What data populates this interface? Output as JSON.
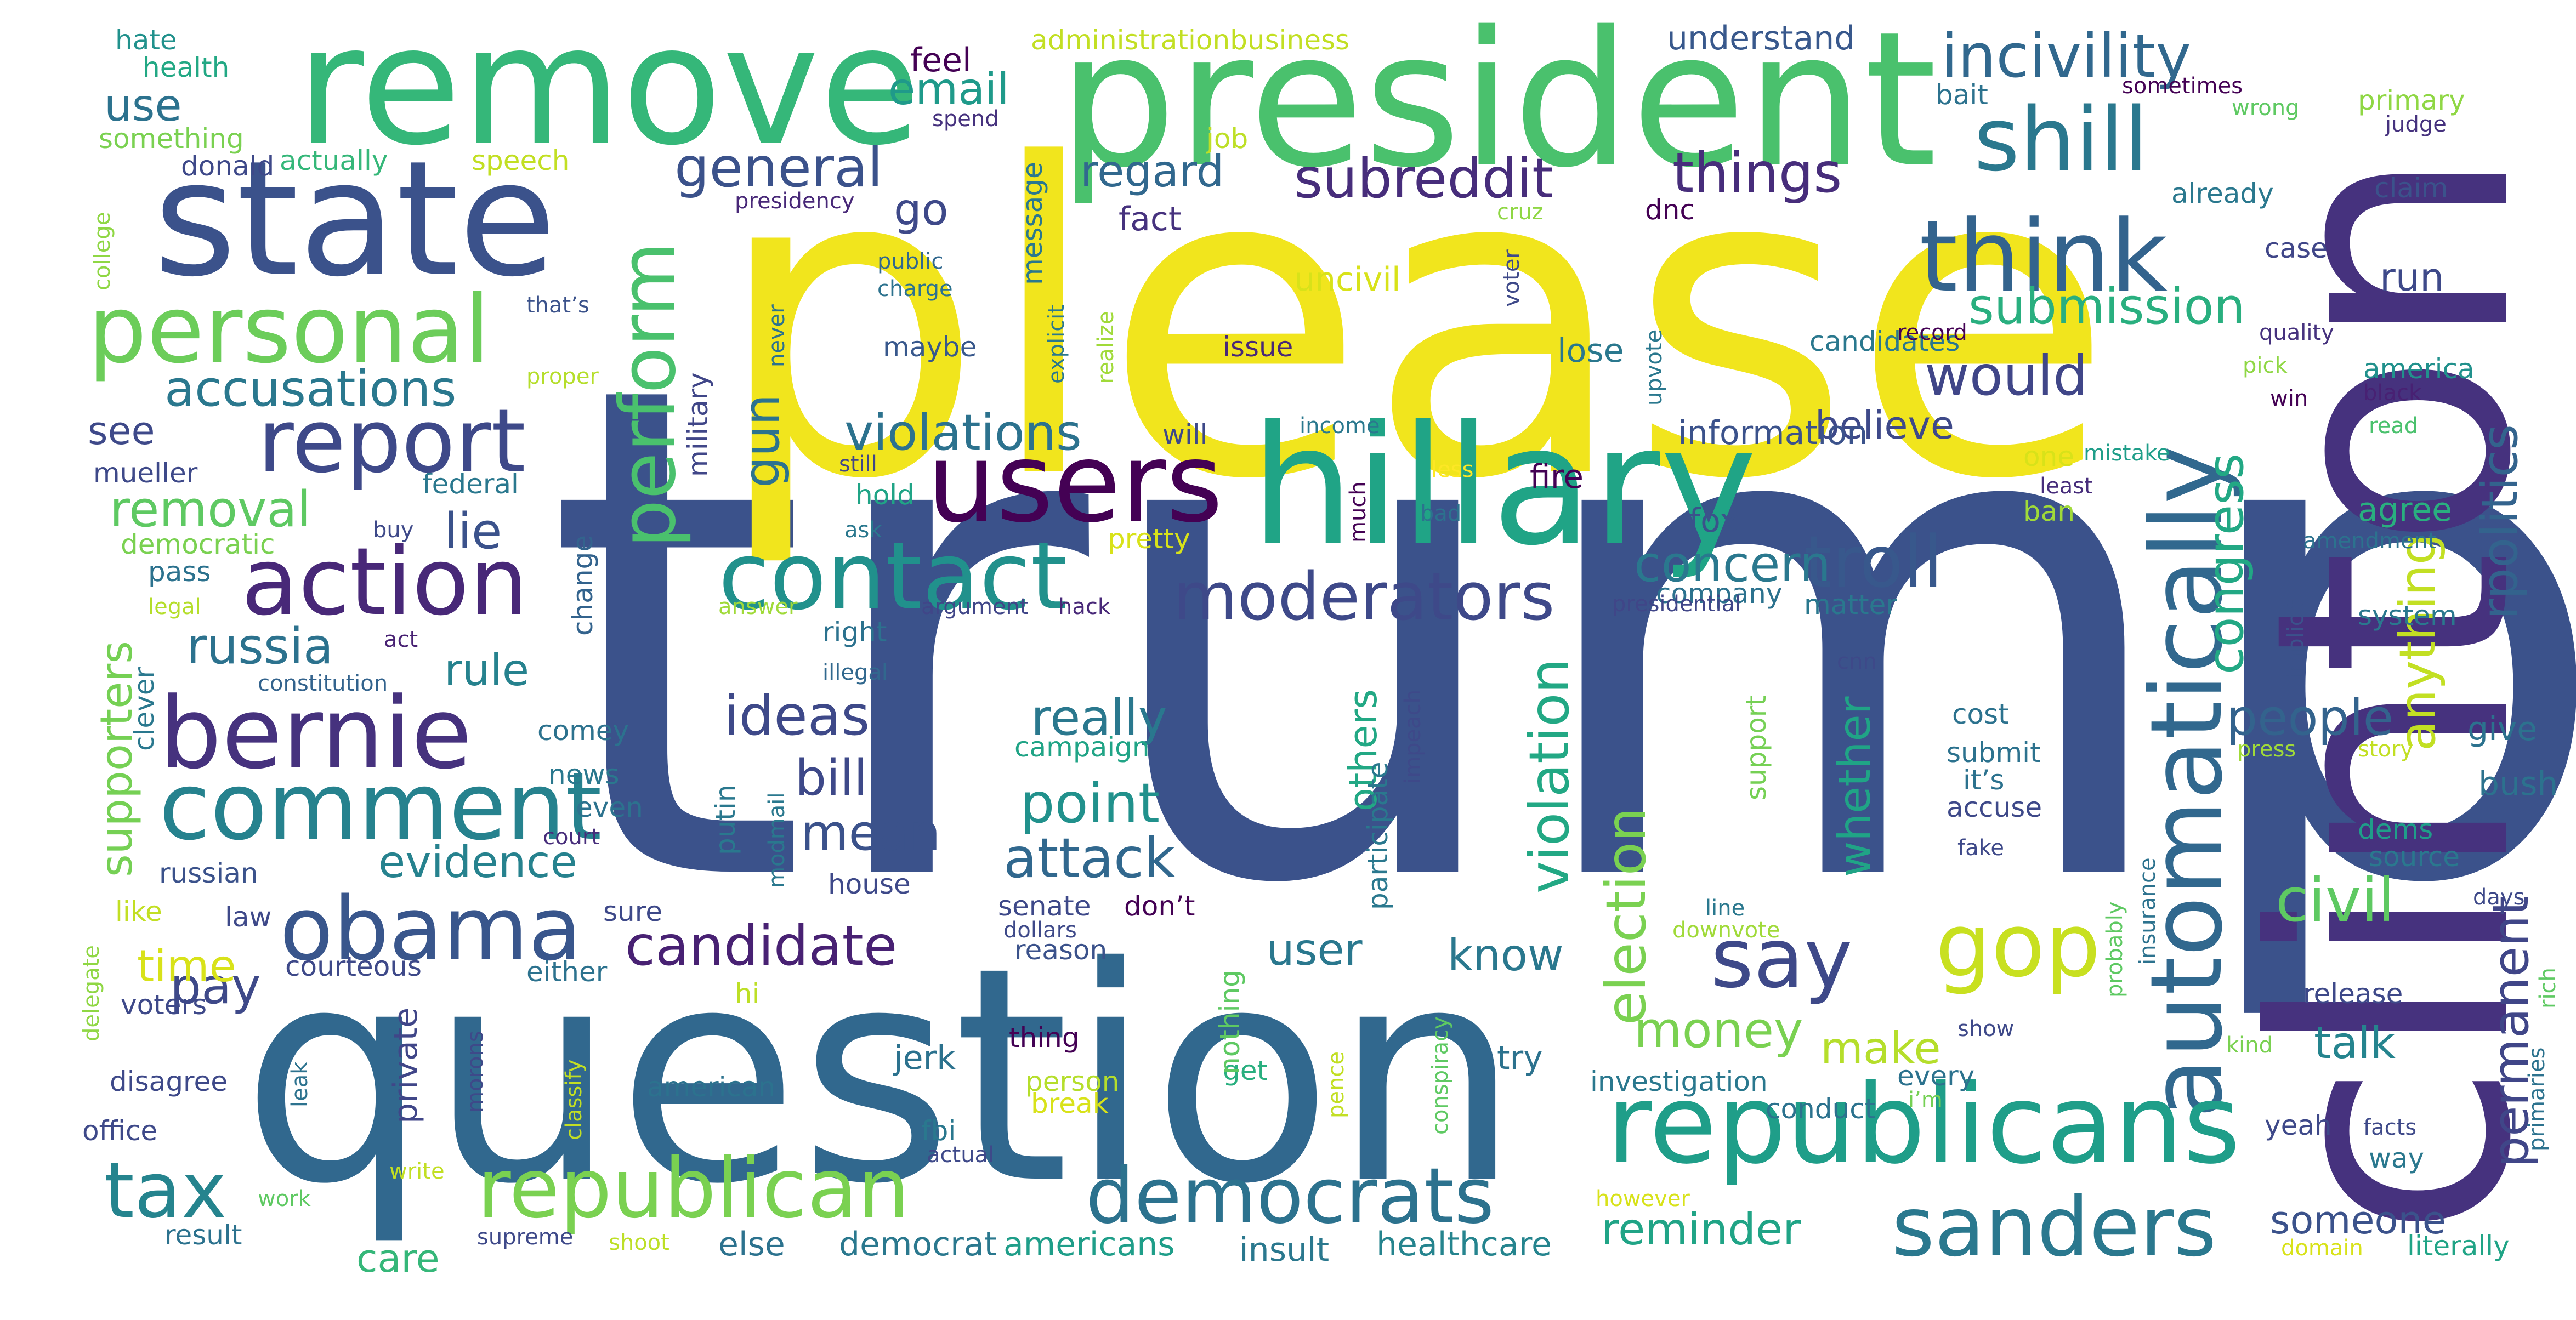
{
  "words": [
    {
      "text": "trump",
      "color": "#3b528b"
    },
    {
      "text": "clinton",
      "color": "#46327e"
    },
    {
      "text": "please",
      "color": "#f1e51d"
    },
    {
      "text": "question",
      "color": "#31688e"
    },
    {
      "text": "president",
      "color": "#4ac16d"
    },
    {
      "text": "remove",
      "color": "#35b779"
    },
    {
      "text": "hillary",
      "color": "#20a486"
    },
    {
      "text": "state",
      "color": "#3b528b"
    },
    {
      "text": "users",
      "color": "#440154"
    },
    {
      "text": "automatically",
      "color": "#31688e"
    },
    {
      "text": "republicans",
      "color": "#1f9e89"
    },
    {
      "text": "action",
      "color": "#482878"
    },
    {
      "text": "bernie",
      "color": "#46327e"
    },
    {
      "text": "comment",
      "color": "#26828e"
    },
    {
      "text": "contact",
      "color": "#21918c"
    },
    {
      "text": "think",
      "color": "#33638d"
    },
    {
      "text": "personal",
      "color": "#6ccd5a"
    },
    {
      "text": "report",
      "color": "#3e4989"
    },
    {
      "text": "obama",
      "color": "#39568c"
    },
    {
      "text": "republican",
      "color": "#7ad151"
    },
    {
      "text": "democrats",
      "color": "#2c728e"
    },
    {
      "text": "sanders",
      "color": "#2a788e"
    },
    {
      "text": "shill",
      "color": "#2a788e"
    },
    {
      "text": "moderators",
      "color": "#3e4989"
    },
    {
      "text": "perform",
      "color": "#4ac16d"
    },
    {
      "text": "tax",
      "color": "#25848e"
    },
    {
      "text": "say",
      "color": "#3e4989"
    },
    {
      "text": "gop",
      "color": "#c8e020"
    },
    {
      "text": "incivility",
      "color": "#31688e"
    },
    {
      "text": "troll",
      "color": "#38588c"
    },
    {
      "text": "accusations",
      "color": "#2a788e"
    },
    {
      "text": "candidate",
      "color": "#482173"
    },
    {
      "text": "rpolitics",
      "color": "#33638d"
    },
    {
      "text": "subreddit",
      "color": "#472d7b"
    },
    {
      "text": "general",
      "color": "#3b528b"
    },
    {
      "text": "things",
      "color": "#472d7b"
    },
    {
      "text": "submission",
      "color": "#29af7f"
    },
    {
      "text": "would",
      "color": "#404688"
    },
    {
      "text": "election",
      "color": "#7ad151"
    },
    {
      "text": "violation",
      "color": "#22a884"
    },
    {
      "text": "violations",
      "color": "#2c728e"
    },
    {
      "text": "ideas",
      "color": "#3e4989"
    },
    {
      "text": "point",
      "color": "#21918c"
    },
    {
      "text": "attack",
      "color": "#31688e"
    },
    {
      "text": "civil",
      "color": "#5ec962"
    },
    {
      "text": "concern",
      "color": "#2a788e"
    },
    {
      "text": "people",
      "color": "#33638d"
    },
    {
      "text": "really",
      "color": "#2a788e"
    },
    {
      "text": "congress",
      "color": "#22a884"
    },
    {
      "text": "anything",
      "color": "#c2df23"
    },
    {
      "text": "permanent",
      "color": "#404688"
    },
    {
      "text": "whether",
      "color": "#20a486"
    },
    {
      "text": "evidence",
      "color": "#26828e"
    },
    {
      "text": "removal",
      "color": "#5ec962"
    },
    {
      "text": "russia",
      "color": "#2c728e"
    },
    {
      "text": "supporters",
      "color": "#75d054"
    },
    {
      "text": "email",
      "color": "#1f9a8a"
    },
    {
      "text": "use",
      "color": "#2c728e"
    },
    {
      "text": "regard",
      "color": "#31688e"
    },
    {
      "text": "go",
      "color": "#3e4989"
    },
    {
      "text": "lie",
      "color": "#3b528b"
    },
    {
      "text": "rule",
      "color": "#26828e"
    },
    {
      "text": "gun",
      "color": "#2c728e"
    },
    {
      "text": "bill",
      "color": "#3e4989"
    },
    {
      "text": "mean",
      "color": "#3b528b"
    },
    {
      "text": "believe",
      "color": "#3e4989"
    },
    {
      "text": "others",
      "color": "#22a884"
    },
    {
      "text": "see",
      "color": "#3e4989"
    },
    {
      "text": "know",
      "color": "#2a788e"
    },
    {
      "text": "money",
      "color": "#7ad151"
    },
    {
      "text": "user",
      "color": "#2a788e"
    },
    {
      "text": "make",
      "color": "#b5de2b"
    },
    {
      "text": "talk",
      "color": "#25848e"
    },
    {
      "text": "pay",
      "color": "#3e4989"
    },
    {
      "text": "time",
      "color": "#d8e219"
    },
    {
      "text": "care",
      "color": "#35b779"
    },
    {
      "text": "reminder",
      "color": "#20a486"
    },
    {
      "text": "someone",
      "color": "#3b528b"
    },
    {
      "text": "moderators2",
      "color": "#3e4989"
    },
    {
      "text": "fire",
      "color": "#440154"
    },
    {
      "text": "information",
      "color": "#3b528b"
    },
    {
      "text": "lose",
      "color": "#2a788e"
    },
    {
      "text": "issue",
      "color": "#482878"
    },
    {
      "text": "candidates",
      "color": "#2a788e"
    },
    {
      "text": "maybe",
      "color": "#38588c"
    },
    {
      "text": "uncivil",
      "color": "#d8e219"
    },
    {
      "text": "fact",
      "color": "#46327e"
    },
    {
      "text": "job",
      "color": "#bddf26"
    },
    {
      "text": "feel",
      "color": "#440154"
    },
    {
      "text": "administrationbusiness",
      "color": "#c2df23"
    },
    {
      "text": "understand",
      "color": "#38588c"
    },
    {
      "text": "bait",
      "color": "#2c728e"
    },
    {
      "text": "primary",
      "color": "#8fd744"
    },
    {
      "text": "judge",
      "color": "#46327e"
    },
    {
      "text": "sometimes",
      "color": "#440154"
    },
    {
      "text": "wrong",
      "color": "#5ec962"
    },
    {
      "text": "already",
      "color": "#2a788e"
    },
    {
      "text": "claim",
      "color": "#3b528b"
    },
    {
      "text": "run",
      "color": "#3e4989"
    },
    {
      "text": "case",
      "color": "#404688"
    },
    {
      "text": "dnc",
      "color": "#440154"
    },
    {
      "text": "cruz",
      "color": "#8fd744"
    },
    {
      "text": "presidency",
      "color": "#482878"
    },
    {
      "text": "message",
      "color": "#2a788e"
    },
    {
      "text": "speech",
      "color": "#c2df23"
    },
    {
      "text": "actually",
      "color": "#35b779"
    },
    {
      "text": "donald",
      "color": "#3e4989"
    },
    {
      "text": "something",
      "color": "#7ad151"
    },
    {
      "text": "health",
      "color": "#22a884"
    },
    {
      "text": "hate",
      "color": "#21918c"
    },
    {
      "text": "spend",
      "color": "#46327e"
    },
    {
      "text": "college",
      "color": "#8fd744"
    },
    {
      "text": "that’s",
      "color": "#3b528b"
    },
    {
      "text": "public",
      "color": "#31688e"
    },
    {
      "text": "charge",
      "color": "#2c728e"
    },
    {
      "text": "explicit",
      "color": "#2a788e"
    },
    {
      "text": "realize",
      "color": "#a0da39"
    },
    {
      "text": "never",
      "color": "#2c728e"
    },
    {
      "text": "proper",
      "color": "#b5de2b"
    },
    {
      "text": "military",
      "color": "#404688"
    },
    {
      "text": "voter",
      "color": "#3e4989"
    },
    {
      "text": "record",
      "color": "#440154"
    },
    {
      "text": "quality",
      "color": "#46327e"
    },
    {
      "text": "america",
      "color": "#21918c"
    },
    {
      "text": "pick",
      "color": "#8fd744"
    },
    {
      "text": "win",
      "color": "#440154"
    },
    {
      "text": "black",
      "color": "#482173"
    },
    {
      "text": "read",
      "color": "#4ac16d"
    },
    {
      "text": "upvote",
      "color": "#2a788e"
    },
    {
      "text": "income",
      "color": "#2a788e"
    },
    {
      "text": "less",
      "color": "#fde725"
    },
    {
      "text": "bad",
      "color": "#2c728e"
    },
    {
      "text": "much",
      "color": "#440154"
    },
    {
      "text": "will",
      "color": "#3e4989"
    },
    {
      "text": "still",
      "color": "#404688"
    },
    {
      "text": "hold",
      "color": "#20a486"
    },
    {
      "text": "ask",
      "color": "#2a788e"
    },
    {
      "text": "pretty",
      "color": "#d8e219"
    },
    {
      "text": "one",
      "color": "#d8e219"
    },
    {
      "text": "mistake",
      "color": "#1f9e89"
    },
    {
      "text": "least",
      "color": "#472d7b"
    },
    {
      "text": "ban",
      "color": "#a0da39"
    },
    {
      "text": "agree",
      "color": "#29af7f"
    },
    {
      "text": "amendment",
      "color": "#2c728e"
    },
    {
      "text": "implicit",
      "color": "#3b528b"
    },
    {
      "text": "fox",
      "color": "#3b528b"
    },
    {
      "text": "company",
      "color": "#2c728e"
    },
    {
      "text": "matter",
      "color": "#2a788e"
    },
    {
      "text": "presidential",
      "color": "#404688"
    },
    {
      "text": "system",
      "color": "#2a788e"
    },
    {
      "text": "hack",
      "color": "#482878"
    },
    {
      "text": "argument",
      "color": "#404688"
    },
    {
      "text": "answer",
      "color": "#a0da39"
    },
    {
      "text": "right",
      "color": "#2c728e"
    },
    {
      "text": "illegal",
      "color": "#31688e"
    },
    {
      "text": "act",
      "color": "#482173"
    },
    {
      "text": "constitution",
      "color": "#33638d"
    },
    {
      "text": "legal",
      "color": "#b5de2b"
    },
    {
      "text": "pass",
      "color": "#2c728e"
    },
    {
      "text": "democratic",
      "color": "#7ad151"
    },
    {
      "text": "buy",
      "color": "#3e4989"
    },
    {
      "text": "change",
      "color": "#33638d"
    },
    {
      "text": "mueller",
      "color": "#3e4989"
    },
    {
      "text": "federal",
      "color": "#2a788e"
    },
    {
      "text": "clever",
      "color": "#2a788e"
    },
    {
      "text": "comey",
      "color": "#2c728e"
    },
    {
      "text": "news",
      "color": "#2a788e"
    },
    {
      "text": "even",
      "color": "#2c728e"
    },
    {
      "text": "court",
      "color": "#472d7b"
    },
    {
      "text": "russian",
      "color": "#3b528b"
    },
    {
      "text": "like",
      "color": "#c2df23"
    },
    {
      "text": "law",
      "color": "#3e4989"
    },
    {
      "text": "sure",
      "color": "#3e4989"
    },
    {
      "text": "delegate",
      "color": "#8fd744"
    },
    {
      "text": "courteous",
      "color": "#3e4989"
    },
    {
      "text": "either",
      "color": "#2c728e"
    },
    {
      "text": "voters",
      "color": "#3e4989"
    },
    {
      "text": "hi",
      "color": "#bddf26"
    },
    {
      "text": "morons",
      "color": "#3e4989"
    },
    {
      "text": "private",
      "color": "#404688"
    },
    {
      "text": "disagree",
      "color": "#3e4989"
    },
    {
      "text": "leak",
      "color": "#2c728e"
    },
    {
      "text": "office",
      "color": "#3e4989"
    },
    {
      "text": "work",
      "color": "#5ec962"
    },
    {
      "text": "write",
      "color": "#c2df23"
    },
    {
      "text": "result",
      "color": "#2c728e"
    },
    {
      "text": "supreme",
      "color": "#3e4989"
    },
    {
      "text": "shoot",
      "color": "#bddf26"
    },
    {
      "text": "else",
      "color": "#2c728e"
    },
    {
      "text": "democrat",
      "color": "#2a788e"
    },
    {
      "text": "americans",
      "color": "#1f9e89"
    },
    {
      "text": "insult",
      "color": "#2a788e"
    },
    {
      "text": "healthcare",
      "color": "#25848e"
    },
    {
      "text": "however",
      "color": "#d8e219"
    },
    {
      "text": "domain",
      "color": "#d8e219"
    },
    {
      "text": "literally",
      "color": "#20a486"
    },
    {
      "text": "actual",
      "color": "#3e4989"
    },
    {
      "text": "fbi",
      "color": "#2a788e"
    },
    {
      "text": "classify",
      "color": "#c2df23"
    },
    {
      "text": "american",
      "color": "#2c728e"
    },
    {
      "text": "jerk",
      "color": "#2c728e"
    },
    {
      "text": "thing",
      "color": "#440154"
    },
    {
      "text": "person",
      "color": "#b5de2b"
    },
    {
      "text": "break",
      "color": "#d8e219"
    },
    {
      "text": "get",
      "color": "#29af7f"
    },
    {
      "text": "pence",
      "color": "#c2df23"
    },
    {
      "text": "conspiracy",
      "color": "#5ec962"
    },
    {
      "text": "try",
      "color": "#2c728e"
    },
    {
      "text": "nothing",
      "color": "#5ec962"
    },
    {
      "text": "reason",
      "color": "#3b528b"
    },
    {
      "text": "dollars",
      "color": "#3e4989"
    },
    {
      "text": "senate",
      "color": "#3e4989"
    },
    {
      "text": "don’t",
      "color": "#440154"
    },
    {
      "text": "campaign",
      "color": "#20a486"
    },
    {
      "text": "house",
      "color": "#3e4989"
    },
    {
      "text": "putin",
      "color": "#2a788e"
    },
    {
      "text": "modmail",
      "color": "#2a788e"
    },
    {
      "text": "impeach",
      "color": "#3e4989"
    },
    {
      "text": "participate",
      "color": "#2a788e"
    },
    {
      "text": "support",
      "color": "#75d054"
    },
    {
      "text": "cnn",
      "color": "#3e4989"
    },
    {
      "text": "cost",
      "color": "#2c728e"
    },
    {
      "text": "submit",
      "color": "#2c728e"
    },
    {
      "text": "it’s",
      "color": "#2c728e"
    },
    {
      "text": "accuse",
      "color": "#3e4989"
    },
    {
      "text": "fake",
      "color": "#3e4989"
    },
    {
      "text": "line",
      "color": "#2a788e"
    },
    {
      "text": "downvote",
      "color": "#a0da39"
    },
    {
      "text": "investigation",
      "color": "#2a788e"
    },
    {
      "text": "conduct",
      "color": "#2c728e"
    },
    {
      "text": "every",
      "color": "#2c728e"
    },
    {
      "text": "i’m",
      "color": "#75d054"
    },
    {
      "text": "show",
      "color": "#3e4989"
    },
    {
      "text": "probably",
      "color": "#5ec962"
    },
    {
      "text": "insurance",
      "color": "#2c728e"
    },
    {
      "text": "release",
      "color": "#3e4989"
    },
    {
      "text": "dems",
      "color": "#1f9e89"
    },
    {
      "text": "source",
      "color": "#2a788e"
    },
    {
      "text": "yeah",
      "color": "#3e4989"
    },
    {
      "text": "way",
      "color": "#2a788e"
    },
    {
      "text": "facts",
      "color": "#3e4989"
    },
    {
      "text": "kind",
      "color": "#7ad151"
    },
    {
      "text": "days",
      "color": "#3e4989"
    },
    {
      "text": "press",
      "color": "#a0da39"
    },
    {
      "text": "story",
      "color": "#c2df23"
    },
    {
      "text": "give",
      "color": "#2c728e"
    },
    {
      "text": "bush",
      "color": "#2c728e"
    },
    {
      "text": "rich",
      "color": "#5ec962"
    },
    {
      "text": "primaries",
      "color": "#2c728e"
    }
  ]
}
